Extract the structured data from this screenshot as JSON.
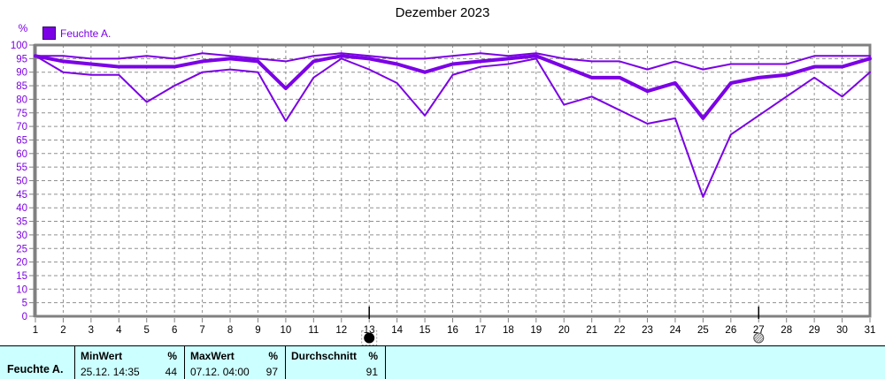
{
  "title": "Dezember 2023",
  "y_axis_unit": "%",
  "legend": {
    "label": "Feuchte A.",
    "color": "#7B00E6"
  },
  "chart_data": {
    "type": "line",
    "title": "Dezember 2023",
    "ylabel": "%",
    "ylim": [
      0,
      100
    ],
    "y_step": 5,
    "grid": true,
    "line_color": "#7B00E6",
    "x": [
      1,
      2,
      3,
      4,
      5,
      6,
      7,
      8,
      9,
      10,
      11,
      12,
      13,
      14,
      15,
      16,
      17,
      18,
      19,
      20,
      21,
      22,
      23,
      24,
      25,
      26,
      27,
      28,
      29,
      30,
      31
    ],
    "series": [
      {
        "name": "MaxWert",
        "width": 2,
        "values": [
          96,
          96,
          95,
          95,
          96,
          95,
          97,
          96,
          95,
          94,
          96,
          97,
          96,
          95,
          95,
          96,
          97,
          96,
          97,
          95,
          94,
          94,
          91,
          94,
          91,
          93,
          93,
          93,
          96,
          96,
          96
        ]
      },
      {
        "name": "Durchschnitt",
        "width": 4,
        "values": [
          96,
          94,
          93,
          92,
          92,
          92,
          94,
          95,
          94,
          84,
          94,
          96,
          95,
          93,
          90,
          93,
          94,
          95,
          96,
          92,
          88,
          88,
          83,
          86,
          73,
          86,
          88,
          89,
          92,
          92,
          95
        ]
      },
      {
        "name": "MinWert",
        "width": 2,
        "values": [
          96,
          90,
          89,
          89,
          79,
          85,
          90,
          91,
          90,
          72,
          88,
          95,
          91,
          86,
          74,
          89,
          92,
          93,
          95,
          78,
          81,
          76,
          71,
          73,
          44,
          67,
          74,
          81,
          88,
          81,
          90
        ]
      }
    ],
    "markers": [
      {
        "day": 13,
        "style": "filled",
        "focus_rect": true
      },
      {
        "day": 27,
        "style": "hatched",
        "focus_rect": false
      }
    ]
  },
  "summary_table": {
    "row_label": "Feuchte A.",
    "columns": [
      {
        "header": "MinWert",
        "unit": "%",
        "timestamp": "25.12.  14:35",
        "value": "44"
      },
      {
        "header": "MaxWert",
        "unit": "%",
        "timestamp": "07.12.  04:00",
        "value": "97"
      },
      {
        "header": "Durchschnitt",
        "unit": "%",
        "timestamp": "",
        "value": "91"
      }
    ]
  },
  "colors": {
    "line": "#7B00E6",
    "grid": "#909090",
    "frame": "#808080",
    "table_background": "#CCFFFF",
    "x_label": "#000000",
    "y_label": "#7B00E6"
  }
}
